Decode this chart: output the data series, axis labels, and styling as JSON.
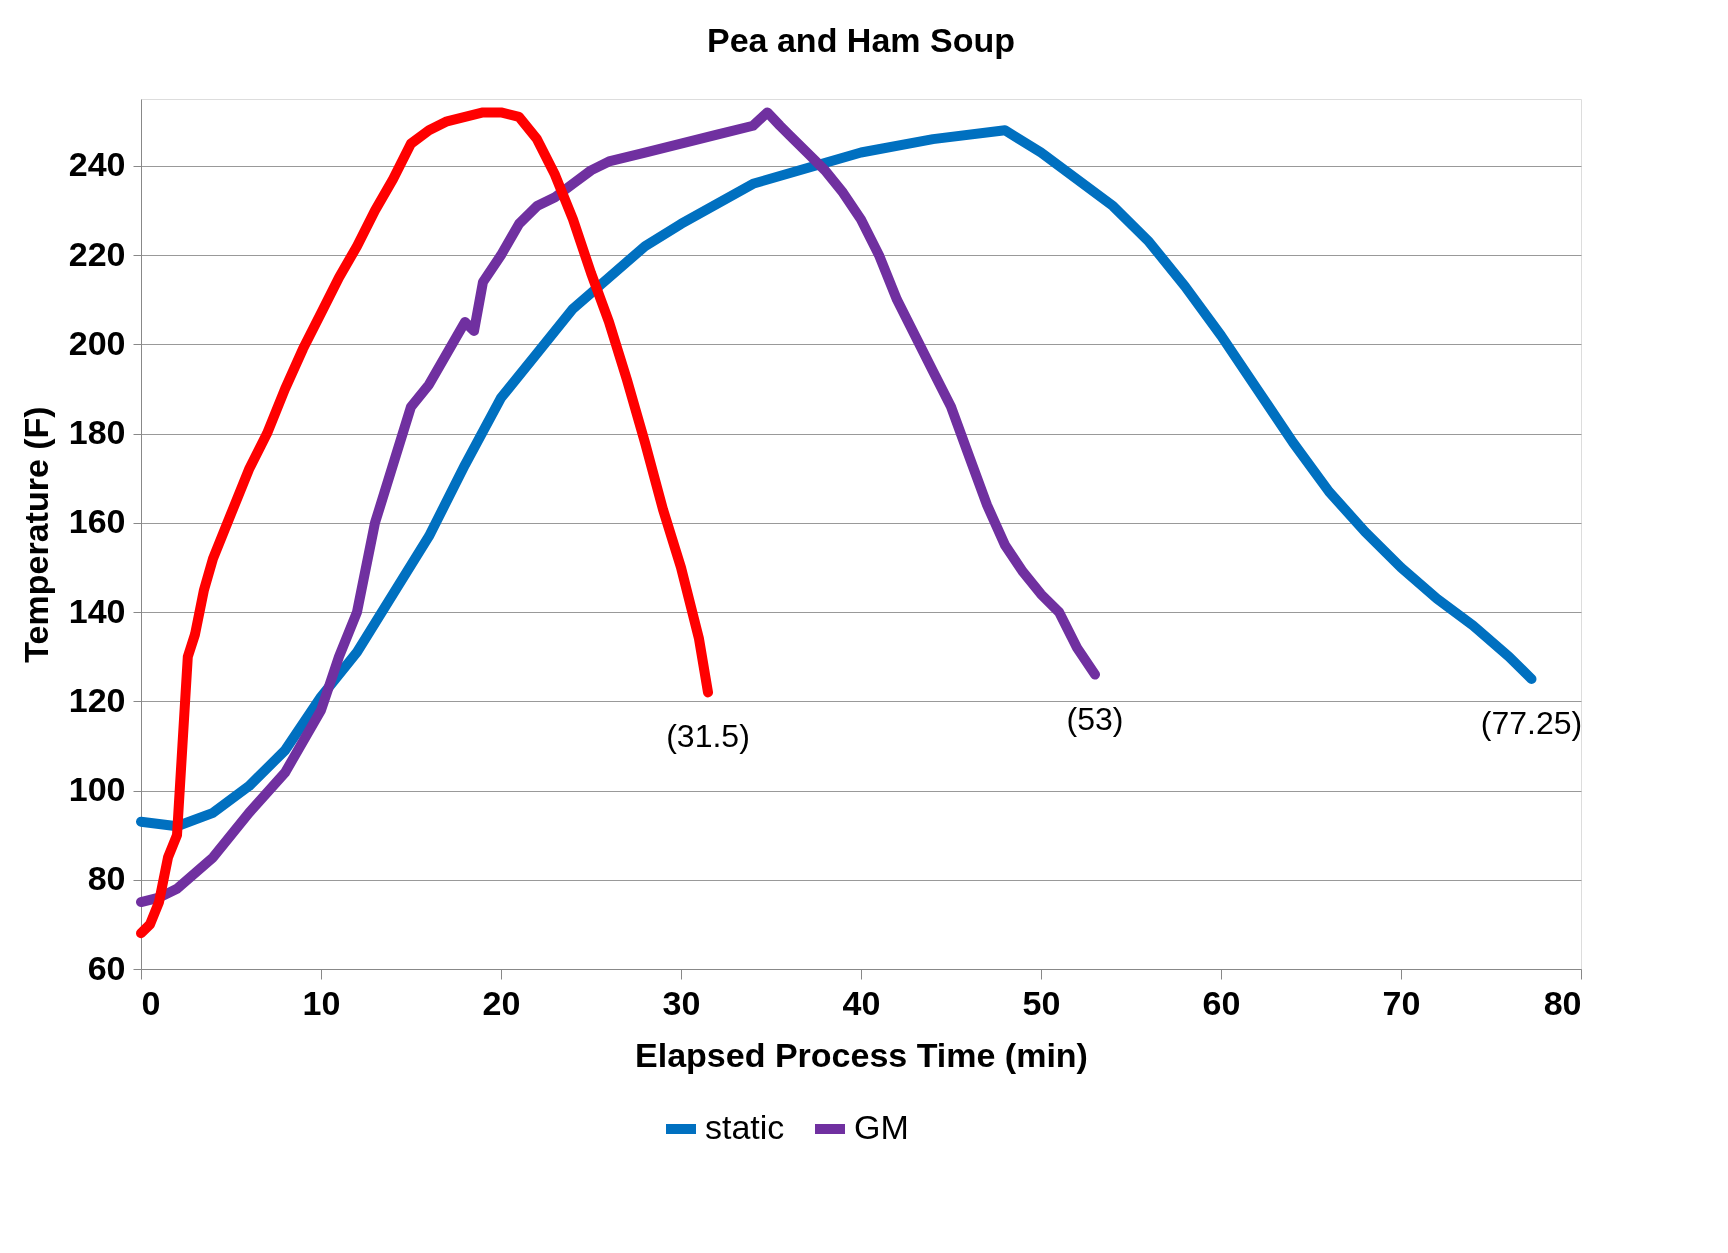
{
  "chart_data": {
    "type": "line",
    "title": "Pea and Ham Soup",
    "xlabel": "Elapsed Process Time (min)",
    "ylabel": "Temperature (F)",
    "xlim": [
      0,
      80
    ],
    "xticks": [
      0,
      10,
      20,
      30,
      40,
      50,
      60,
      70,
      80
    ],
    "ylim": [
      60,
      255
    ],
    "yticks": [
      60,
      80,
      100,
      120,
      140,
      160,
      180,
      200,
      220,
      240
    ],
    "grid": "y",
    "legend": "bottom",
    "line_style": "solid",
    "annotations": [
      {
        "text": "(31.5)",
        "x": 31.5,
        "y": 122
      },
      {
        "text": "(53)",
        "x": 53,
        "y": 126
      },
      {
        "text": "(77.25)",
        "x": 77.25,
        "y": 125
      }
    ],
    "series": [
      {
        "name": "static",
        "color": "#0070c0",
        "x": [
          0,
          2,
          4,
          6,
          8,
          10,
          12,
          14,
          16,
          18,
          20,
          22,
          24,
          26,
          28,
          30,
          34,
          40,
          44,
          48,
          50,
          52,
          54,
          56,
          58,
          60,
          62,
          64,
          66,
          68,
          70,
          72,
          74,
          76,
          77.25
        ],
        "values": [
          93,
          92,
          95,
          101,
          109,
          121,
          131,
          144,
          157,
          173,
          188,
          198,
          208,
          215,
          222,
          227,
          236,
          243,
          246,
          248,
          243,
          237,
          231,
          223,
          213,
          202,
          190,
          178,
          167,
          158,
          150,
          143,
          137,
          130,
          125
        ]
      },
      {
        "name": "GM",
        "color": "#7030a0",
        "x": [
          0,
          1,
          2,
          4,
          6,
          8,
          10,
          11,
          12,
          13,
          14,
          15,
          16,
          17,
          18,
          18.5,
          19,
          20,
          21,
          22,
          23,
          24,
          25,
          26,
          28,
          30,
          32,
          34,
          34.8,
          35.5,
          36,
          37,
          38,
          39,
          40,
          41,
          42,
          43,
          44,
          45,
          46,
          47,
          48,
          49,
          50,
          51,
          52,
          53
        ],
        "values": [
          75,
          76,
          78,
          85,
          95,
          104,
          118,
          130,
          140,
          160,
          173,
          186,
          191,
          198,
          205,
          203,
          214,
          220,
          227,
          231,
          233,
          236,
          239,
          241,
          243,
          245,
          247,
          249,
          252,
          249,
          247,
          243,
          239,
          234,
          228,
          220,
          210,
          202,
          194,
          186,
          175,
          164,
          155,
          149,
          144,
          140,
          132,
          126
        ]
      },
      {
        "color": "#ff0000",
        "x": [
          0,
          0.5,
          1,
          1.5,
          2,
          2.3,
          2.6,
          3,
          3.5,
          4,
          5,
          6,
          7,
          8,
          9,
          10,
          11,
          12,
          13,
          14,
          15,
          16,
          17,
          18,
          19,
          20,
          21,
          22,
          23,
          24,
          25,
          26,
          27,
          28,
          29,
          30,
          31,
          31.5
        ],
        "values": [
          68,
          70,
          75,
          85,
          90,
          110,
          130,
          135,
          145,
          152,
          162,
          172,
          180,
          190,
          199,
          207,
          215,
          222,
          230,
          237,
          245,
          248,
          250,
          251,
          252,
          252,
          251,
          246,
          238,
          228,
          216,
          205,
          192,
          178,
          163,
          150,
          134,
          122
        ]
      }
    ]
  }
}
